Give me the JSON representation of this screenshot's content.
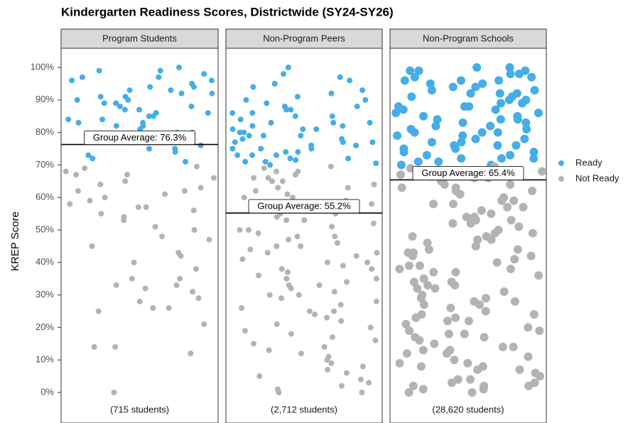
{
  "chart_data": {
    "type": "strip",
    "title": "Kindergarten Readiness Scores, Districtwide (SY24-SY26)",
    "ylabel": "KREP Score",
    "ylim": [
      -9.4,
      105.9
    ],
    "yticks": [
      {
        "value": 0,
        "label": "0%"
      },
      {
        "value": 10,
        "label": "10%"
      },
      {
        "value": 20,
        "label": "20%"
      },
      {
        "value": 30,
        "label": "30%"
      },
      {
        "value": 40,
        "label": "40%"
      },
      {
        "value": 50,
        "label": "50%"
      },
      {
        "value": 60,
        "label": "60%"
      },
      {
        "value": 70,
        "label": "70%"
      },
      {
        "value": 80,
        "label": "80%"
      },
      {
        "value": 90,
        "label": "90%"
      },
      {
        "value": 100,
        "label": "100%"
      }
    ],
    "series": [
      {
        "name": "Ready",
        "color": "#45ade8"
      },
      {
        "name": "Not Ready",
        "color": "#b3b3b3"
      }
    ],
    "panels": [
      {
        "title": "Program Students",
        "average": 76.3,
        "average_label": "Group Average: 76.3%",
        "count_label": "(715 students)",
        "values": [
          [
            72,
            74,
            75,
            77,
            78,
            79,
            80,
            81,
            82,
            83,
            84,
            85,
            86,
            87,
            88,
            89,
            90,
            91,
            92,
            93,
            94,
            95,
            96,
            97,
            98,
            99,
            100,
            73,
            76,
            79,
            82,
            85,
            88,
            91,
            94,
            97,
            99,
            86,
            84,
            89,
            92,
            80,
            78,
            90,
            87,
            71,
            75,
            83,
            93,
            96
          ],
          [
            0,
            12,
            14,
            14,
            21,
            25,
            26,
            26,
            28,
            29,
            31,
            32,
            33,
            33,
            35,
            35,
            38,
            40,
            42,
            43,
            45,
            47,
            50,
            51,
            53,
            54,
            56,
            57,
            58,
            59,
            60,
            61,
            62,
            63,
            65,
            66,
            67,
            68,
            69,
            69.5,
            48,
            55,
            64,
            67,
            62,
            57
          ]
        ]
      },
      {
        "title": "Non-Program Peers",
        "average": 55.2,
        "average_label": "Group Average: 55.2%",
        "count_label": "(2,712 students)",
        "values": [
          [
            70,
            70.5,
            71,
            71.5,
            72,
            72,
            73,
            73,
            74,
            74,
            75,
            75,
            76,
            76,
            77,
            77,
            78,
            78,
            79,
            79,
            80,
            80,
            81,
            81,
            82,
            82,
            83,
            83,
            84,
            85,
            85,
            86,
            86,
            87,
            88,
            88,
            89,
            90,
            90,
            91,
            92,
            93,
            94,
            95,
            96,
            97,
            98,
            100,
            71,
            73,
            75,
            77,
            79,
            81,
            83,
            87
          ],
          [
            0,
            0,
            1,
            2,
            3,
            4,
            5,
            6,
            7,
            8,
            9,
            10,
            11,
            12,
            13,
            14,
            15,
            16,
            17,
            18,
            19,
            20,
            21,
            22,
            23,
            24,
            25,
            26,
            27,
            28,
            29,
            30,
            31,
            32,
            33,
            34,
            35,
            36,
            37,
            38,
            39,
            40,
            41,
            42,
            43,
            44,
            45,
            46,
            47,
            48,
            49,
            50,
            51,
            52,
            53,
            54,
            55,
            56,
            57,
            58,
            59,
            60,
            61,
            62,
            63,
            64,
            65,
            66,
            67,
            68,
            69,
            69.5,
            25,
            30,
            35,
            40,
            45,
            50,
            55,
            60,
            65,
            68,
            33,
            38,
            43,
            48,
            53,
            58,
            63,
            66
          ]
        ]
      },
      {
        "title": "Non-Program Schools",
        "average": 65.4,
        "average_label": "Group Average: 65.4%",
        "count_label": "(28,620 students)",
        "values": [
          [
            70,
            70,
            71,
            71,
            72,
            72,
            73,
            73,
            74,
            74,
            75,
            75,
            76,
            76,
            77,
            77,
            78,
            78,
            79,
            79,
            80,
            80,
            81,
            81,
            82,
            82,
            83,
            83,
            84,
            84,
            85,
            85,
            86,
            86,
            87,
            87,
            88,
            88,
            89,
            89,
            90,
            90,
            91,
            91,
            92,
            92,
            93,
            93,
            94,
            94,
            95,
            95,
            96,
            96,
            97,
            97,
            98,
            98,
            99,
            99,
            100,
            100,
            72,
            76,
            80,
            84,
            88,
            92,
            96,
            99
          ],
          [
            0,
            0,
            1,
            1,
            2,
            2,
            3,
            4,
            5,
            6,
            7,
            8,
            9,
            10,
            11,
            12,
            13,
            14,
            15,
            16,
            17,
            18,
            19,
            20,
            21,
            22,
            23,
            24,
            25,
            26,
            27,
            28,
            29,
            30,
            31,
            32,
            33,
            34,
            35,
            36,
            37,
            38,
            39,
            40,
            41,
            42,
            43,
            44,
            45,
            46,
            47,
            48,
            49,
            50,
            51,
            52,
            53,
            54,
            55,
            56,
            57,
            58,
            59,
            60,
            61,
            62,
            63,
            64,
            65,
            66,
            67,
            68,
            69,
            69.5,
            4,
            9,
            14,
            19,
            24,
            29,
            34,
            39,
            44,
            49,
            54,
            59,
            64,
            68,
            2,
            7,
            12,
            17,
            22,
            27,
            32,
            37,
            42,
            47,
            52,
            57,
            62,
            66,
            3,
            8,
            13,
            18,
            23,
            28,
            33,
            38,
            43,
            48,
            53,
            58,
            63,
            67
          ]
        ]
      }
    ]
  }
}
